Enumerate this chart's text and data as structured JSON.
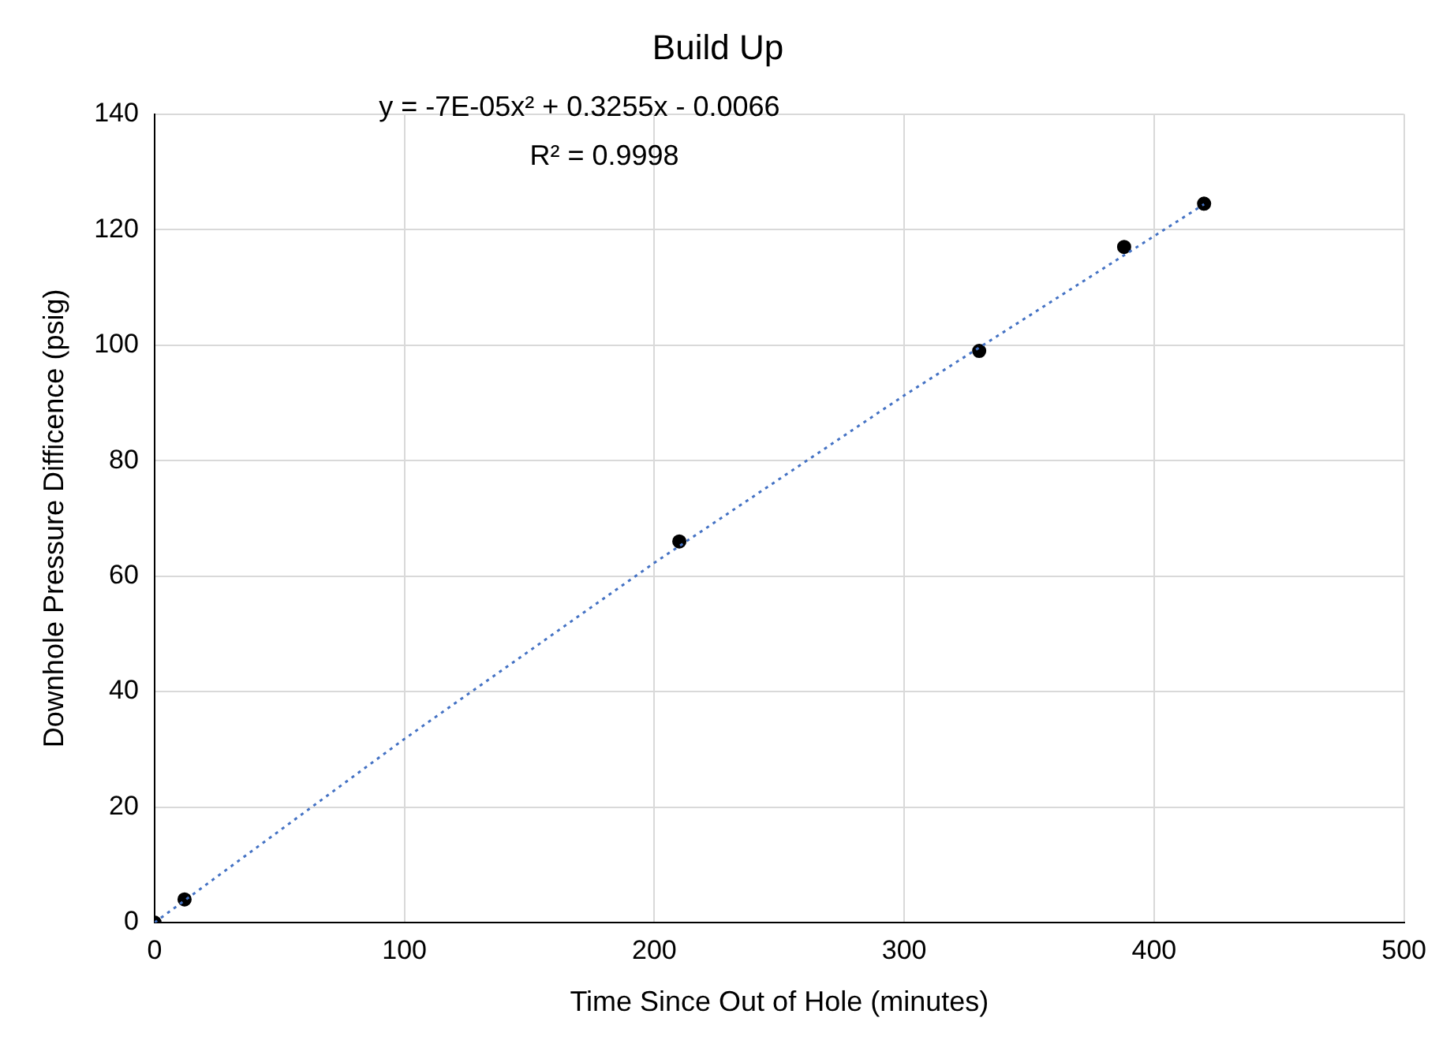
{
  "chart_data": {
    "type": "scatter",
    "title": "Build Up",
    "xlabel": "Time Since Out of Hole (minutes)",
    "ylabel": "Downhole Pressure Difficence (psig)",
    "series": [
      {
        "color": "#000000",
        "x": [
          0,
          12,
          210,
          330,
          388,
          420
        ],
        "values": [
          0,
          4,
          66,
          99,
          117,
          124.5
        ]
      },
      {
        "type": "line",
        "color": "#4472c4",
        "line_style": "dotted",
        "marker": "none",
        "x": [
          0,
          100,
          200,
          300,
          420
        ],
        "values": [
          0,
          31.8,
          62.3,
          91.3,
          124.4
        ]
      }
    ],
    "xlim": [
      0,
      500
    ],
    "xticks": [
      0,
      100,
      200,
      300,
      400,
      500
    ],
    "ylim": [
      0,
      140
    ],
    "yticks": [
      0,
      20,
      40,
      60,
      80,
      100,
      120,
      140
    ],
    "grid": true,
    "legend": false,
    "marker": "circle",
    "annotations": [
      "y = -7E-05x² + 0.3255x - 0.0066",
      "R² = 0.9998"
    ]
  }
}
